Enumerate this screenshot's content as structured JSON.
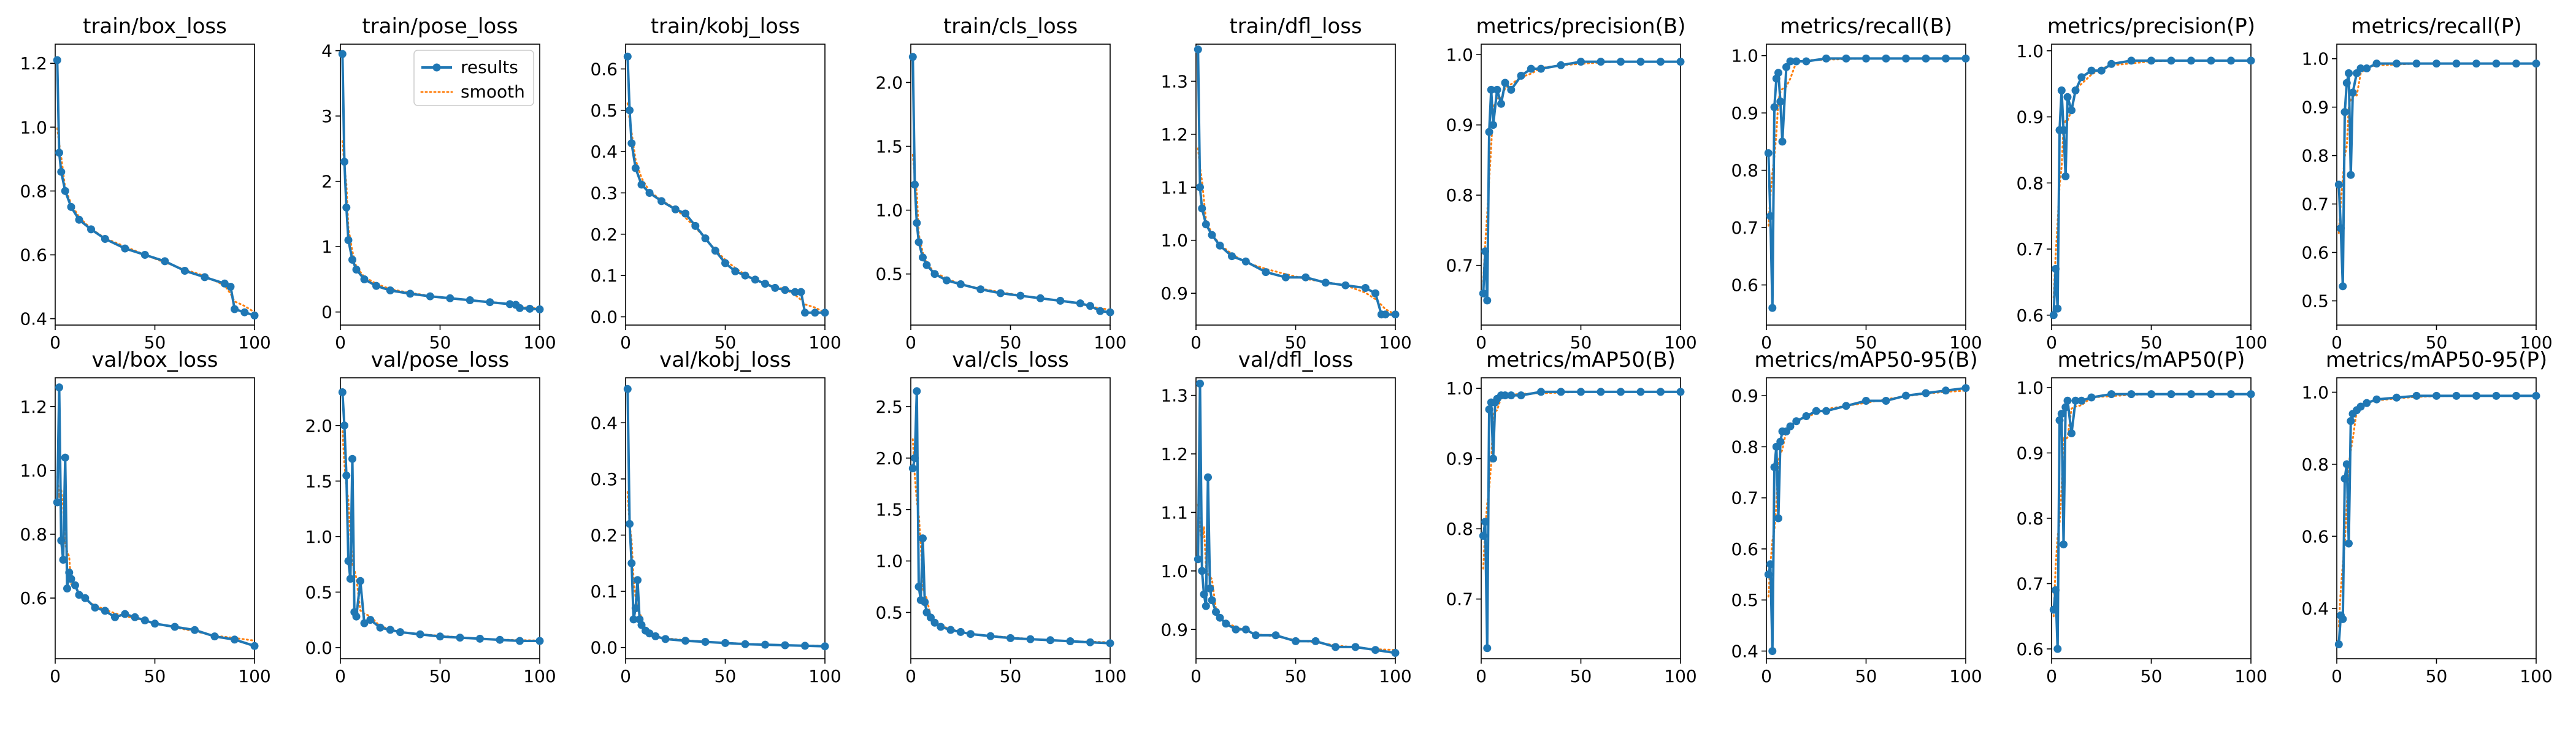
{
  "colors": {
    "results": "#1f77b4",
    "smooth": "#ff7f0e",
    "axes": "#000000"
  },
  "legend": {
    "results_label": "results",
    "smooth_label": "smooth",
    "placement": "upper-right of train/pose_loss"
  },
  "chart_data": [
    {
      "type": "line",
      "title": "train/box_loss",
      "xlim": [
        0,
        100
      ],
      "ylim": [
        0.38,
        1.26
      ],
      "xticks": [
        0,
        50,
        100
      ],
      "xtick_labels": [
        "0",
        "50",
        "100"
      ],
      "yticks": [
        0.4,
        0.6,
        0.8,
        1.0,
        1.2
      ],
      "ytick_labels": [
        "0.4",
        "0.6",
        "0.8",
        "1.0",
        "1.2"
      ],
      "x": [
        1,
        2,
        3,
        5,
        8,
        12,
        18,
        25,
        35,
        45,
        55,
        65,
        75,
        85,
        88,
        90,
        95,
        100
      ],
      "y": [
        1.21,
        0.92,
        0.86,
        0.8,
        0.75,
        0.71,
        0.68,
        0.65,
        0.62,
        0.6,
        0.58,
        0.55,
        0.53,
        0.51,
        0.5,
        0.43,
        0.42,
        0.41
      ]
    },
    {
      "type": "line",
      "title": "train/pose_loss",
      "xlim": [
        0,
        100
      ],
      "ylim": [
        -0.2,
        4.1
      ],
      "xticks": [
        0,
        50,
        100
      ],
      "xtick_labels": [
        "0",
        "50",
        "100"
      ],
      "yticks": [
        0,
        1,
        2,
        3,
        4
      ],
      "ytick_labels": [
        "0",
        "1",
        "2",
        "3",
        "4"
      ],
      "x": [
        1,
        2,
        3,
        4,
        6,
        8,
        12,
        18,
        25,
        35,
        45,
        55,
        65,
        75,
        85,
        88,
        90,
        95,
        100
      ],
      "y": [
        3.95,
        2.3,
        1.6,
        1.1,
        0.8,
        0.65,
        0.5,
        0.4,
        0.33,
        0.28,
        0.24,
        0.21,
        0.18,
        0.15,
        0.12,
        0.11,
        0.06,
        0.05,
        0.04
      ]
    },
    {
      "type": "line",
      "title": "train/kobj_loss",
      "xlim": [
        0,
        100
      ],
      "ylim": [
        -0.02,
        0.66
      ],
      "xticks": [
        0,
        50,
        100
      ],
      "xtick_labels": [
        "0",
        "50",
        "100"
      ],
      "yticks": [
        0.0,
        0.1,
        0.2,
        0.3,
        0.4,
        0.5,
        0.6
      ],
      "ytick_labels": [
        "0.0",
        "0.1",
        "0.2",
        "0.3",
        "0.4",
        "0.5",
        "0.6"
      ],
      "x": [
        1,
        2,
        3,
        5,
        8,
        12,
        18,
        25,
        30,
        35,
        40,
        45,
        50,
        55,
        60,
        65,
        70,
        75,
        80,
        85,
        88,
        90,
        95,
        100
      ],
      "y": [
        0.63,
        0.5,
        0.42,
        0.36,
        0.32,
        0.3,
        0.28,
        0.26,
        0.25,
        0.22,
        0.19,
        0.16,
        0.13,
        0.11,
        0.1,
        0.09,
        0.08,
        0.07,
        0.065,
        0.06,
        0.06,
        0.01,
        0.01,
        0.01
      ]
    },
    {
      "type": "line",
      "title": "train/cls_loss",
      "xlim": [
        0,
        100
      ],
      "ylim": [
        0.1,
        2.3
      ],
      "xticks": [
        0,
        50,
        100
      ],
      "xtick_labels": [
        "0",
        "50",
        "100"
      ],
      "yticks": [
        0.5,
        1.0,
        1.5,
        2.0
      ],
      "ytick_labels": [
        "0.5",
        "1.0",
        "1.5",
        "2.0"
      ],
      "x": [
        1,
        2,
        3,
        4,
        6,
        8,
        12,
        18,
        25,
        35,
        45,
        55,
        65,
        75,
        85,
        90,
        95,
        100
      ],
      "y": [
        2.2,
        1.2,
        0.9,
        0.75,
        0.63,
        0.57,
        0.5,
        0.45,
        0.42,
        0.38,
        0.35,
        0.33,
        0.31,
        0.29,
        0.27,
        0.25,
        0.21,
        0.2
      ]
    },
    {
      "type": "line",
      "title": "train/dfl_loss",
      "xlim": [
        0,
        100
      ],
      "ylim": [
        0.84,
        1.37
      ],
      "xticks": [
        0,
        50,
        100
      ],
      "xtick_labels": [
        "0",
        "50",
        "100"
      ],
      "yticks": [
        0.9,
        1.0,
        1.1,
        1.2,
        1.3
      ],
      "ytick_labels": [
        "0.9",
        "1.0",
        "1.1",
        "1.2",
        "1.3"
      ],
      "x": [
        1,
        2,
        3,
        5,
        8,
        12,
        18,
        25,
        35,
        45,
        55,
        65,
        75,
        85,
        90,
        93,
        95,
        100
      ],
      "y": [
        1.36,
        1.1,
        1.06,
        1.03,
        1.01,
        0.99,
        0.97,
        0.96,
        0.94,
        0.93,
        0.93,
        0.92,
        0.915,
        0.91,
        0.9,
        0.86,
        0.86,
        0.86
      ]
    },
    {
      "type": "line",
      "title": "metrics/precision(B)",
      "xlim": [
        0,
        100
      ],
      "ylim": [
        0.615,
        1.015
      ],
      "xticks": [
        0,
        50,
        100
      ],
      "xtick_labels": [
        "0",
        "50",
        "100"
      ],
      "yticks": [
        0.7,
        0.8,
        0.9,
        1.0
      ],
      "ytick_labels": [
        "0.7",
        "0.8",
        "0.9",
        "1.0"
      ],
      "x": [
        1,
        2,
        3,
        4,
        5,
        6,
        8,
        10,
        12,
        15,
        20,
        25,
        30,
        40,
        50,
        60,
        70,
        80,
        90,
        100
      ],
      "y": [
        0.66,
        0.72,
        0.65,
        0.89,
        0.95,
        0.9,
        0.95,
        0.93,
        0.96,
        0.95,
        0.97,
        0.98,
        0.98,
        0.985,
        0.99,
        0.99,
        0.99,
        0.99,
        0.99,
        0.99
      ]
    },
    {
      "type": "line",
      "title": "metrics/recall(B)",
      "xlim": [
        0,
        100
      ],
      "ylim": [
        0.53,
        1.02
      ],
      "xticks": [
        0,
        50,
        100
      ],
      "xtick_labels": [
        "0",
        "50",
        "100"
      ],
      "yticks": [
        0.6,
        0.7,
        0.8,
        0.9,
        1.0
      ],
      "ytick_labels": [
        "0.6",
        "0.7",
        "0.8",
        "0.9",
        "1.0"
      ],
      "x": [
        1,
        2,
        3,
        4,
        5,
        6,
        7,
        8,
        10,
        12,
        15,
        20,
        30,
        40,
        50,
        60,
        70,
        80,
        90,
        100
      ],
      "y": [
        0.83,
        0.72,
        0.56,
        0.91,
        0.96,
        0.97,
        0.92,
        0.85,
        0.98,
        0.99,
        0.99,
        0.99,
        0.995,
        0.995,
        0.995,
        0.995,
        0.995,
        0.995,
        0.995,
        0.995
      ]
    },
    {
      "type": "line",
      "title": "metrics/precision(P)",
      "xlim": [
        0,
        100
      ],
      "ylim": [
        0.585,
        1.01
      ],
      "xticks": [
        0,
        50,
        100
      ],
      "xtick_labels": [
        "0",
        "50",
        "100"
      ],
      "yticks": [
        0.6,
        0.7,
        0.8,
        0.9,
        1.0
      ],
      "ytick_labels": [
        "0.6",
        "0.7",
        "0.8",
        "0.9",
        "1.0"
      ],
      "x": [
        1,
        2,
        3,
        4,
        5,
        6,
        7,
        8,
        10,
        12,
        15,
        20,
        25,
        30,
        40,
        50,
        60,
        70,
        80,
        90,
        100
      ],
      "y": [
        0.6,
        0.67,
        0.61,
        0.88,
        0.94,
        0.88,
        0.81,
        0.93,
        0.91,
        0.94,
        0.96,
        0.97,
        0.97,
        0.98,
        0.985,
        0.985,
        0.985,
        0.985,
        0.985,
        0.985,
        0.985
      ]
    },
    {
      "type": "line",
      "title": "metrics/recall(P)",
      "xlim": [
        0,
        100
      ],
      "ylim": [
        0.45,
        1.03
      ],
      "xticks": [
        0,
        50,
        100
      ],
      "xtick_labels": [
        "0",
        "50",
        "100"
      ],
      "yticks": [
        0.5,
        0.6,
        0.7,
        0.8,
        0.9,
        1.0
      ],
      "ytick_labels": [
        "0.5",
        "0.6",
        "0.7",
        "0.8",
        "0.9",
        "1.0"
      ],
      "x": [
        1,
        2,
        3,
        4,
        5,
        6,
        7,
        8,
        10,
        12,
        15,
        20,
        30,
        40,
        50,
        60,
        70,
        80,
        90,
        100
      ],
      "y": [
        0.74,
        0.65,
        0.53,
        0.89,
        0.95,
        0.97,
        0.76,
        0.93,
        0.97,
        0.98,
        0.98,
        0.99,
        0.99,
        0.99,
        0.99,
        0.99,
        0.99,
        0.99,
        0.99,
        0.99
      ]
    },
    {
      "type": "line",
      "title": "val/box_loss",
      "xlim": [
        0,
        100
      ],
      "ylim": [
        0.41,
        1.29
      ],
      "xticks": [
        0,
        50,
        100
      ],
      "xtick_labels": [
        "0",
        "50",
        "100"
      ],
      "yticks": [
        0.6,
        0.8,
        1.0,
        1.2
      ],
      "ytick_labels": [
        "0.6",
        "0.8",
        "1.0",
        "1.2"
      ],
      "x": [
        1,
        2,
        3,
        4,
        5,
        6,
        7,
        8,
        10,
        12,
        15,
        20,
        25,
        30,
        35,
        40,
        45,
        50,
        60,
        70,
        80,
        90,
        100
      ],
      "y": [
        0.9,
        1.26,
        0.78,
        0.72,
        1.04,
        0.63,
        0.68,
        0.66,
        0.64,
        0.61,
        0.6,
        0.57,
        0.56,
        0.54,
        0.55,
        0.54,
        0.53,
        0.52,
        0.51,
        0.5,
        0.48,
        0.47,
        0.45
      ]
    },
    {
      "type": "line",
      "title": "val/pose_loss",
      "xlim": [
        0,
        100
      ],
      "ylim": [
        -0.1,
        2.43
      ],
      "xticks": [
        0,
        50,
        100
      ],
      "xtick_labels": [
        "0",
        "50",
        "100"
      ],
      "yticks": [
        0.0,
        0.5,
        1.0,
        1.5,
        2.0
      ],
      "ytick_labels": [
        "0.0",
        "0.5",
        "1.0",
        "1.5",
        "2.0"
      ],
      "x": [
        1,
        2,
        3,
        4,
        5,
        6,
        7,
        8,
        10,
        12,
        15,
        20,
        25,
        30,
        40,
        50,
        60,
        70,
        80,
        90,
        100
      ],
      "y": [
        2.3,
        2.0,
        1.55,
        0.78,
        0.62,
        1.7,
        0.32,
        0.28,
        0.6,
        0.22,
        0.25,
        0.18,
        0.16,
        0.14,
        0.12,
        0.1,
        0.09,
        0.08,
        0.07,
        0.06,
        0.06
      ]
    },
    {
      "type": "line",
      "title": "val/kobj_loss",
      "xlim": [
        0,
        100
      ],
      "ylim": [
        -0.02,
        0.48
      ],
      "xticks": [
        0,
        50,
        100
      ],
      "xtick_labels": [
        "0",
        "50",
        "100"
      ],
      "yticks": [
        0.0,
        0.1,
        0.2,
        0.3,
        0.4
      ],
      "ytick_labels": [
        "0.0",
        "0.1",
        "0.2",
        "0.3",
        "0.4"
      ],
      "x": [
        1,
        2,
        3,
        4,
        5,
        6,
        7,
        8,
        10,
        12,
        15,
        20,
        30,
        40,
        50,
        60,
        70,
        80,
        90,
        100
      ],
      "y": [
        0.46,
        0.22,
        0.15,
        0.05,
        0.07,
        0.12,
        0.05,
        0.04,
        0.03,
        0.025,
        0.02,
        0.015,
        0.012,
        0.01,
        0.008,
        0.006,
        0.005,
        0.004,
        0.003,
        0.002
      ]
    },
    {
      "type": "line",
      "title": "val/cls_loss",
      "xlim": [
        0,
        100
      ],
      "ylim": [
        0.05,
        2.78
      ],
      "xticks": [
        0,
        50,
        100
      ],
      "xtick_labels": [
        "0",
        "50",
        "100"
      ],
      "yticks": [
        0.5,
        1.0,
        1.5,
        2.0,
        2.5
      ],
      "ytick_labels": [
        "0.5",
        "1.0",
        "1.5",
        "2.0",
        "2.5"
      ],
      "x": [
        1,
        2,
        3,
        4,
        5,
        6,
        7,
        8,
        10,
        12,
        15,
        20,
        25,
        30,
        40,
        50,
        60,
        70,
        80,
        90,
        100
      ],
      "y": [
        1.9,
        2.0,
        2.65,
        0.75,
        0.62,
        1.22,
        0.6,
        0.5,
        0.45,
        0.4,
        0.36,
        0.33,
        0.31,
        0.29,
        0.27,
        0.25,
        0.24,
        0.23,
        0.22,
        0.21,
        0.2
      ]
    },
    {
      "type": "line",
      "title": "val/dfl_loss",
      "xlim": [
        0,
        100
      ],
      "ylim": [
        0.85,
        1.33
      ],
      "xticks": [
        0,
        50,
        100
      ],
      "xtick_labels": [
        "0",
        "50",
        "100"
      ],
      "yticks": [
        0.9,
        1.0,
        1.1,
        1.2,
        1.3
      ],
      "ytick_labels": [
        "0.9",
        "1.0",
        "1.1",
        "1.2",
        "1.3"
      ],
      "x": [
        1,
        2,
        3,
        4,
        5,
        6,
        7,
        8,
        10,
        12,
        15,
        20,
        25,
        30,
        40,
        50,
        60,
        70,
        80,
        90,
        100
      ],
      "y": [
        1.02,
        1.32,
        1.0,
        0.96,
        0.94,
        1.16,
        0.97,
        0.95,
        0.93,
        0.92,
        0.91,
        0.9,
        0.9,
        0.89,
        0.89,
        0.88,
        0.88,
        0.87,
        0.87,
        0.865,
        0.86
      ]
    },
    {
      "type": "line",
      "title": "metrics/mAP50(B)",
      "xlim": [
        0,
        100
      ],
      "ylim": [
        0.615,
        1.015
      ],
      "xticks": [
        0,
        50,
        100
      ],
      "xtick_labels": [
        "0",
        "50",
        "100"
      ],
      "yticks": [
        0.7,
        0.8,
        0.9,
        1.0
      ],
      "ytick_labels": [
        "0.7",
        "0.8",
        "0.9",
        "1.0"
      ],
      "x": [
        1,
        2,
        3,
        4,
        5,
        6,
        7,
        8,
        10,
        12,
        15,
        20,
        30,
        40,
        50,
        60,
        70,
        80,
        90,
        100
      ],
      "y": [
        0.79,
        0.81,
        0.63,
        0.97,
        0.98,
        0.9,
        0.98,
        0.985,
        0.99,
        0.99,
        0.99,
        0.99,
        0.995,
        0.995,
        0.995,
        0.995,
        0.995,
        0.995,
        0.995,
        0.995
      ]
    },
    {
      "type": "line",
      "title": "metrics/mAP50-95(B)",
      "xlim": [
        0,
        100
      ],
      "ylim": [
        0.385,
        0.935
      ],
      "xticks": [
        0,
        50,
        100
      ],
      "xtick_labels": [
        "0",
        "50",
        "100"
      ],
      "yticks": [
        0.4,
        0.5,
        0.6,
        0.7,
        0.8,
        0.9
      ],
      "ytick_labels": [
        "0.4",
        "0.5",
        "0.6",
        "0.7",
        "0.8",
        "0.9"
      ],
      "x": [
        1,
        2,
        3,
        4,
        5,
        6,
        7,
        8,
        10,
        12,
        15,
        20,
        25,
        30,
        40,
        50,
        60,
        70,
        80,
        90,
        100
      ],
      "y": [
        0.55,
        0.57,
        0.4,
        0.76,
        0.8,
        0.66,
        0.81,
        0.83,
        0.83,
        0.84,
        0.85,
        0.86,
        0.87,
        0.87,
        0.88,
        0.89,
        0.89,
        0.9,
        0.905,
        0.91,
        0.915
      ]
    },
    {
      "type": "line",
      "title": "metrics/mAP50(P)",
      "xlim": [
        0,
        100
      ],
      "ylim": [
        0.585,
        1.015
      ],
      "xticks": [
        0,
        50,
        100
      ],
      "xtick_labels": [
        "0",
        "50",
        "100"
      ],
      "yticks": [
        0.6,
        0.7,
        0.8,
        0.9,
        1.0
      ],
      "ytick_labels": [
        "0.6",
        "0.7",
        "0.8",
        "0.9",
        "1.0"
      ],
      "x": [
        1,
        2,
        3,
        4,
        5,
        6,
        7,
        8,
        10,
        12,
        15,
        20,
        30,
        40,
        50,
        60,
        70,
        80,
        90,
        100
      ],
      "y": [
        0.66,
        0.69,
        0.6,
        0.95,
        0.96,
        0.76,
        0.97,
        0.98,
        0.93,
        0.98,
        0.98,
        0.985,
        0.99,
        0.99,
        0.99,
        0.99,
        0.99,
        0.99,
        0.99,
        0.99
      ]
    },
    {
      "type": "line",
      "title": "metrics/mAP50-95(P)",
      "xlim": [
        0,
        100
      ],
      "ylim": [
        0.26,
        1.04
      ],
      "xticks": [
        0,
        50,
        100
      ],
      "xtick_labels": [
        "0",
        "50",
        "100"
      ],
      "yticks": [
        0.4,
        0.6,
        0.8,
        1.0
      ],
      "ytick_labels": [
        "0.4",
        "0.6",
        "0.8",
        "1.0"
      ],
      "x": [
        1,
        2,
        3,
        4,
        5,
        6,
        7,
        8,
        10,
        12,
        15,
        20,
        30,
        40,
        50,
        60,
        70,
        80,
        90,
        100
      ],
      "y": [
        0.3,
        0.38,
        0.37,
        0.76,
        0.8,
        0.58,
        0.92,
        0.94,
        0.95,
        0.96,
        0.97,
        0.98,
        0.985,
        0.99,
        0.99,
        0.99,
        0.99,
        0.99,
        0.99,
        0.99
      ]
    }
  ]
}
